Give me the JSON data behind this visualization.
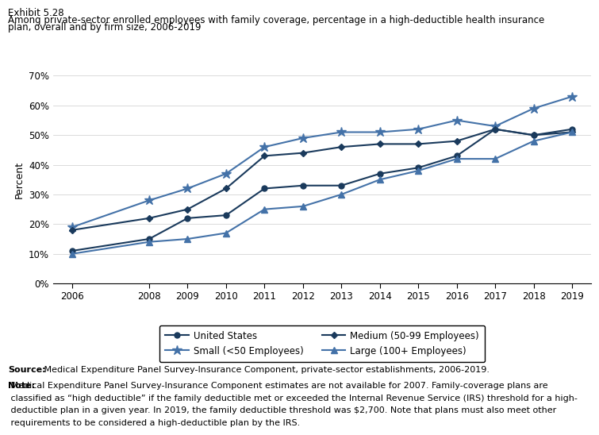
{
  "years": [
    2006,
    2008,
    2009,
    2010,
    2011,
    2012,
    2013,
    2014,
    2015,
    2016,
    2017,
    2018,
    2019
  ],
  "united_states": [
    11,
    15,
    22,
    23,
    32,
    33,
    33,
    37,
    39,
    43,
    52,
    50,
    52
  ],
  "small": [
    19,
    28,
    32,
    37,
    46,
    49,
    51,
    51,
    52,
    55,
    53,
    59,
    63
  ],
  "medium": [
    18,
    22,
    25,
    32,
    43,
    44,
    46,
    47,
    47,
    48,
    52,
    50,
    51
  ],
  "large": [
    10,
    14,
    15,
    17,
    25,
    26,
    30,
    35,
    38,
    42,
    42,
    48,
    51
  ],
  "dark_color": "#1a3a5c",
  "light_color": "#4472a8",
  "ylim": [
    0,
    70
  ],
  "yticks": [
    0,
    10,
    20,
    30,
    40,
    50,
    60,
    70
  ],
  "ylabel": "Percent",
  "title_line1": "Exhibit 5.28",
  "title_line2": "Among private-sector enrolled employees with family coverage, percentage in a high-deductible health insurance plan, overall and by firm size, 2006-2019",
  "source_bold": "Source:",
  "source_rest": " Medical Expenditure Panel Survey-Insurance Component, private-sector establishments, 2006-2019.",
  "note_bold": "Note:",
  "note_rest": " Medical Expenditure Panel Survey-Insurance Component estimates are not available for 2007. Family-coverage plans are classified as “high deductible” if the family deductible met or exceeded the Internal Revenue Service (IRS) threshold for a high-deductible plan in a given year. In 2019, the family deductible threshold was $2,700. Note that plans must also meet other requirements to be considered a high-deductible plan by the IRS.",
  "legend_entries": [
    "United States",
    "Small (<50 Employees)",
    "Medium (50-99 Employees)",
    "Large (100+ Employees)"
  ]
}
